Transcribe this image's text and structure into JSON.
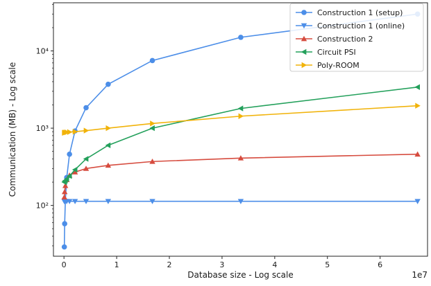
{
  "chart_data": {
    "type": "line",
    "xlabel": "Database size - Log scale",
    "ylabel": "Communication (MB) - Log scale",
    "x_offset_label": "1e7",
    "x_scale": "linear",
    "y_scale": "log",
    "xlim": [
      -2000000,
      69000000
    ],
    "ylim": [
      22,
      42000
    ],
    "x_ticks": [
      0,
      10000000,
      20000000,
      30000000,
      40000000,
      50000000,
      60000000,
      70000000
    ],
    "x_tick_labels": [
      "0",
      "1",
      "2",
      "3",
      "4",
      "5",
      "6",
      "7"
    ],
    "y_ticks": [
      100,
      1000,
      10000
    ],
    "y_tick_labels": [
      "10²",
      "10³",
      "10⁴"
    ],
    "grid": false,
    "legend_position": "top-right",
    "x": [
      65536,
      131072,
      262144,
      524288,
      1048576,
      2097152,
      4194304,
      8388608,
      16777216,
      33554432,
      67108864
    ],
    "series": [
      {
        "name": "Construction 1 (setup)",
        "color": "#4c8ee8",
        "marker": "circle",
        "values": [
          29,
          58,
          115,
          230,
          460,
          920,
          1840,
          3700,
          7500,
          15000,
          30000
        ]
      },
      {
        "name": "Construction 1 (online)",
        "color": "#4c8ee8",
        "marker": "triangle-down",
        "values": [
          113,
          113,
          113,
          113,
          113,
          113,
          113,
          113,
          113,
          113,
          113
        ]
      },
      {
        "name": "Construction 2",
        "color": "#d64b3e",
        "marker": "triangle-up",
        "values": [
          128,
          150,
          180,
          215,
          245,
          270,
          300,
          330,
          370,
          410,
          460
        ]
      },
      {
        "name": "Circuit PSI",
        "color": "#23a05b",
        "marker": "triangle-left",
        "values": [
          200,
          205,
          210,
          220,
          240,
          290,
          400,
          600,
          1000,
          1800,
          3400
        ]
      },
      {
        "name": "Poly-ROOM",
        "color": "#f1b30a",
        "marker": "triangle-right",
        "values": [
          870,
          875,
          880,
          885,
          890,
          900,
          930,
          1000,
          1150,
          1430,
          1950
        ]
      }
    ]
  }
}
